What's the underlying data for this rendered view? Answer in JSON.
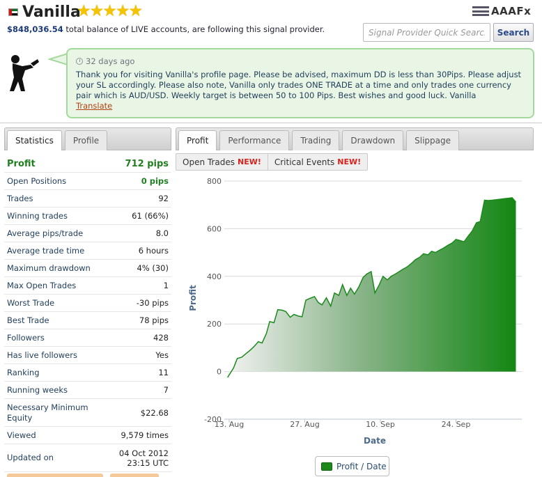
{
  "provider": {
    "name": "Vanilla",
    "rating_stars": 5,
    "stars_text": "★★★★★",
    "balance": "$848,036.54",
    "balance_suffix": "total balance of LIVE accounts, are following this signal provider.",
    "flag_icon": "uae-flag-icon"
  },
  "logo": {
    "text": "AAAFx"
  },
  "search": {
    "placeholder": "Signal Provider Quick Search",
    "button_label": "Search"
  },
  "comment": {
    "time": "32 days ago",
    "message": "Thank you for visiting Vanilla's profile page. Please be advised, maximum DD is less than 30Pips. Please adjust your SL accordingly. Please also note, Vanilla only trades ONE TRADE at a time and only trades one currency pair which is AUD/USD. Weekly target is between 50 to 100 Pips. Best wishes and good luck. Vanilla",
    "translate_label": "Translate"
  },
  "left_tabs": [
    {
      "label": "Statistics",
      "active": true
    },
    {
      "label": "Profile",
      "active": false
    }
  ],
  "stats": [
    {
      "label": "Profit",
      "value": "712 pips"
    },
    {
      "label": "Open Positions",
      "value": "0 pips"
    },
    {
      "label": "Trades",
      "value": "92"
    },
    {
      "label": "Winning trades",
      "value": "61 (66%)"
    },
    {
      "label": "Average pips/trade",
      "value": "8.0"
    },
    {
      "label": "Average trade time",
      "value": "6 hours"
    },
    {
      "label": "Maximum drawdown",
      "value": "4% (30)"
    },
    {
      "label": "Max Open Trades",
      "value": "1"
    },
    {
      "label": "Worst Trade",
      "value": "-30 pips"
    },
    {
      "label": "Best Trade",
      "value": "78 pips"
    },
    {
      "label": "Followers",
      "value": "428"
    },
    {
      "label": "Has live followers",
      "value": "Yes"
    },
    {
      "label": "Ranking",
      "value": "11"
    },
    {
      "label": "Running weeks",
      "value": "7"
    },
    {
      "label": "Necessary Minimum Equity",
      "value": "$22.68"
    },
    {
      "label": "Viewed",
      "value": "9,579 times"
    },
    {
      "label": "Updated on",
      "value": "04 Oct 2012 23:15 UTC"
    }
  ],
  "right_tabs": [
    {
      "label": "Profit",
      "active": true
    },
    {
      "label": "Performance",
      "active": false
    },
    {
      "label": "Trading",
      "active": false
    },
    {
      "label": "Drawdown",
      "active": false
    },
    {
      "label": "Slippage",
      "active": false
    }
  ],
  "sub_tabs": [
    {
      "label": "Open Trades",
      "badge": "NEW!"
    },
    {
      "label": "Critical Events",
      "badge": "NEW!"
    }
  ],
  "chart_data": {
    "type": "area",
    "xlabel": "Date",
    "ylabel": "Profit",
    "ylim": [
      -200,
      800
    ],
    "yticks": [
      -200,
      0,
      200,
      400,
      600,
      800
    ],
    "xticks": [
      "13. Aug",
      "27. Aug",
      "10. Sep",
      "24. Sep"
    ],
    "xtick_days": [
      0,
      14,
      28,
      42
    ],
    "legend": "Profit / Date",
    "colors": {
      "area_end": "#1b8a1b",
      "area_start": "#f0f0f0",
      "line": "#1b8a1b"
    },
    "series": [
      {
        "name": "Profit",
        "x": [
          -0.3,
          0.8,
          1.5,
          2.3,
          3.1,
          3.9,
          4.6,
          5.4,
          6.1,
          6.9,
          7.5,
          8.3,
          9.0,
          9.8,
          10.5,
          11.3,
          12.0,
          12.8,
          13.5,
          14.2,
          15.0,
          15.8,
          16.5,
          17.2,
          18.0,
          18.8,
          19.5,
          20.3,
          21.0,
          21.8,
          22.5,
          23.2,
          24.0,
          24.8,
          25.5,
          26.3,
          27.0,
          27.8,
          28.5,
          29.3,
          30.0,
          30.8,
          31.5,
          32.2,
          33.0,
          33.8,
          34.5,
          35.3,
          36.0,
          36.8,
          37.5,
          38.2,
          39.0,
          39.8,
          40.5,
          41.3,
          42.0,
          42.8,
          43.5,
          44.3,
          45.0,
          45.8,
          46.5,
          47.3,
          48.0,
          48.8,
          49.5,
          50.3,
          51.0,
          51.8,
          52.4,
          53.1
        ],
        "y": [
          -25,
          15,
          55,
          60,
          75,
          90,
          105,
          125,
          120,
          160,
          210,
          205,
          260,
          258,
          252,
          228,
          240,
          233,
          230,
          300,
          308,
          315,
          290,
          280,
          310,
          275,
          330,
          320,
          365,
          320,
          350,
          325,
          355,
          395,
          410,
          420,
          330,
          365,
          400,
          385,
          400,
          410,
          420,
          430,
          440,
          455,
          470,
          480,
          495,
          490,
          505,
          500,
          510,
          520,
          530,
          540,
          555,
          550,
          545,
          570,
          590,
          625,
          630,
          720,
          718,
          720,
          722,
          724,
          726,
          728,
          730,
          712
        ]
      }
    ]
  }
}
